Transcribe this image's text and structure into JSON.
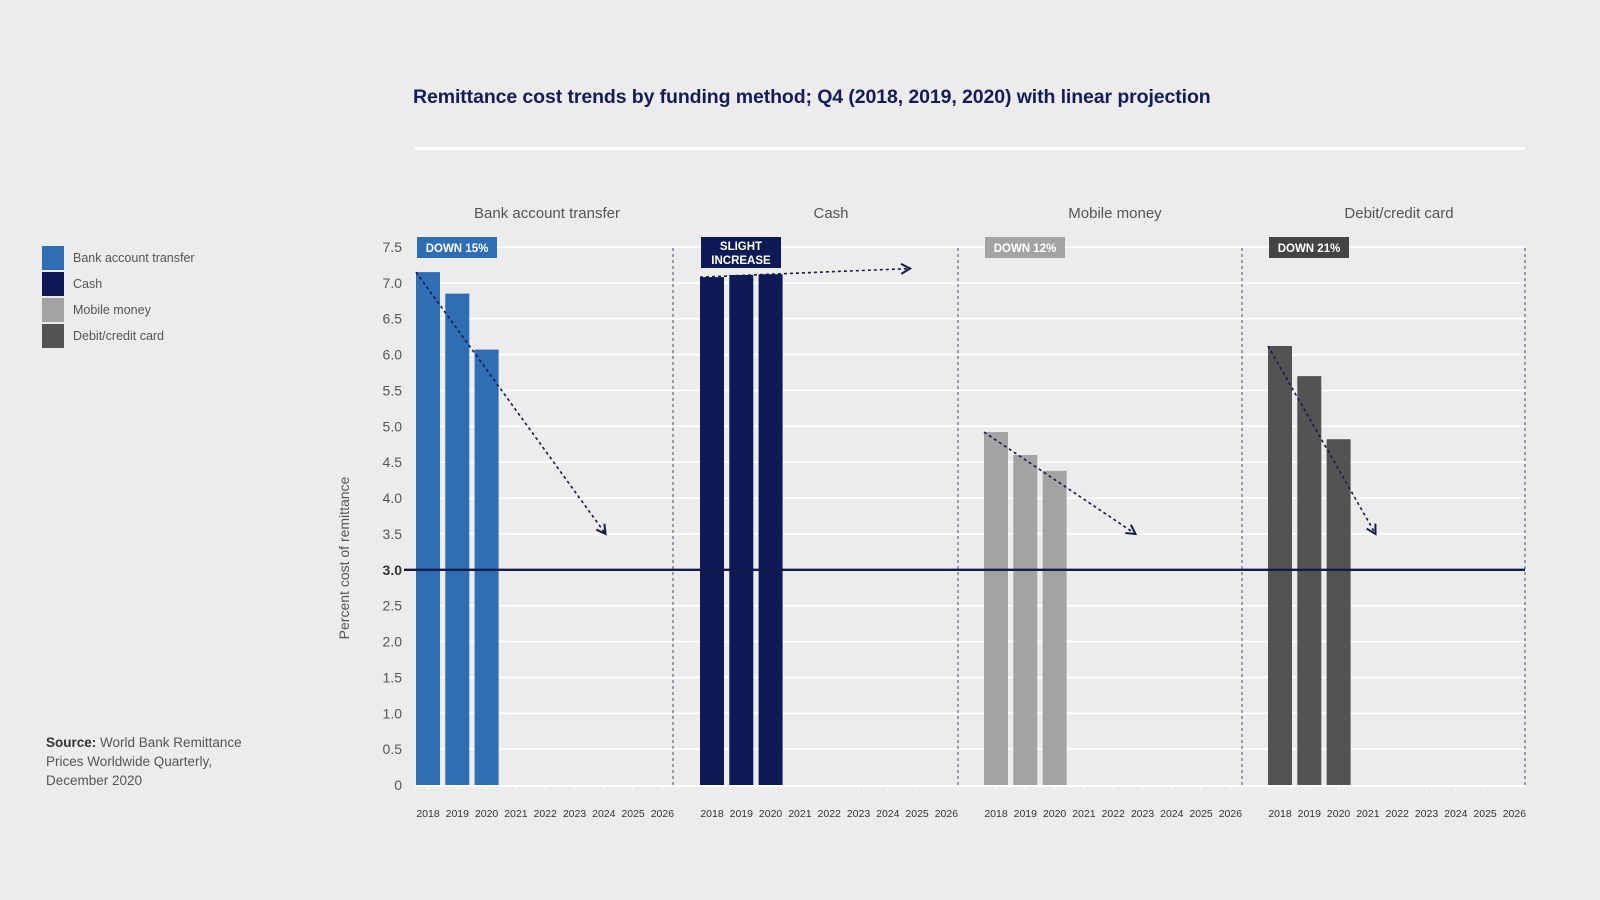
{
  "title": "Remittance cost trends by funding method; Q4 (2018, 2019, 2020) with linear projection",
  "legend": [
    {
      "label": "Bank account transfer",
      "color": "#2f6db5"
    },
    {
      "label": "Cash",
      "color": "#0d1a56"
    },
    {
      "label": "Mobile money",
      "color": "#a3a3a3"
    },
    {
      "label": "Debit/credit card",
      "color": "#535353"
    }
  ],
  "source": {
    "label": "Source:",
    "text": "World Bank Remittance Prices Worldwide Quarterly, December 2020"
  },
  "chart_data": {
    "type": "bar",
    "ylabel": "Percent cost of remittance",
    "ylim": [
      0,
      7.5
    ],
    "yticks": [
      "0",
      "0.5",
      "1.0",
      "1.5",
      "2.0",
      "2.5",
      "3.0",
      "3.5",
      "4.0",
      "4.5",
      "5.0",
      "5.5",
      "6.0",
      "6.5",
      "7.0",
      "7.5"
    ],
    "target_line": 3.0,
    "grid": true,
    "x": [
      "2018",
      "2019",
      "2020",
      "2021",
      "2022",
      "2023",
      "2024",
      "2025",
      "2026"
    ],
    "panels": [
      {
        "name": "Bank account transfer",
        "color": "#2f6db5",
        "values": [
          7.15,
          6.85,
          6.07
        ],
        "badge": "DOWN 15%",
        "badge_color": "#2f6db5",
        "projection_end": [
          6.3,
          3.5
        ]
      },
      {
        "name": "Cash",
        "color": "#0d1a56",
        "values": [
          7.08,
          7.11,
          7.12
        ],
        "badge": "SLIGHT INCREASE",
        "badge_color": "#0d1a56",
        "projection_end": [
          7.0,
          7.2
        ]
      },
      {
        "name": "Mobile money",
        "color": "#a3a3a3",
        "values": [
          4.92,
          4.6,
          4.38
        ],
        "badge": "DOWN 12%",
        "badge_color": "#a3a3a3",
        "projection_end": [
          5.0,
          3.5
        ]
      },
      {
        "name": "Debit/credit card",
        "color": "#535353",
        "values": [
          6.12,
          5.7,
          4.82
        ],
        "badge": "DOWN 21%",
        "badge_color": "#444444",
        "projection_end": [
          3.5,
          3.5
        ]
      }
    ]
  }
}
